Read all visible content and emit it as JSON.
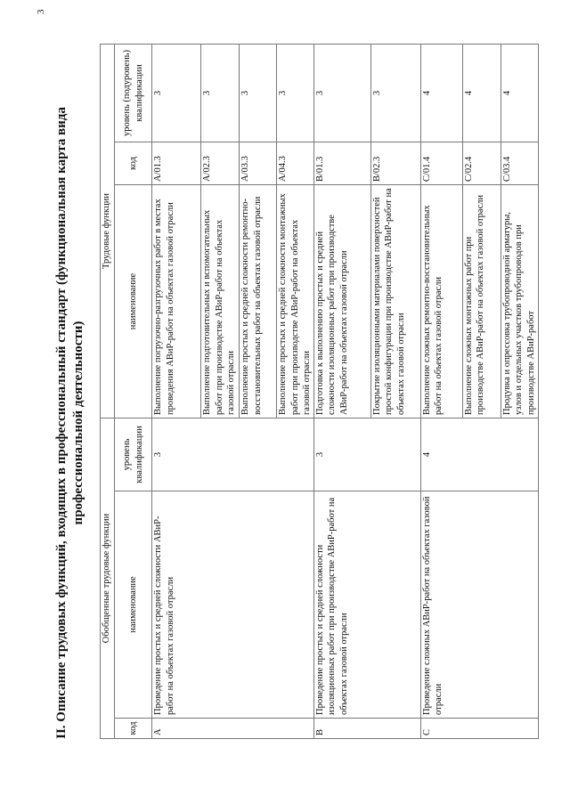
{
  "page_number": "3",
  "title": {
    "line1": "II. Описание трудовых функций, входящих в профессиональный стандарт (функциональная карта вида",
    "line2": "профессиональной деятельности)"
  },
  "table": {
    "headers": {
      "generalized": "Обобщенные трудовые функции",
      "labor": "Трудовые функции",
      "code": "код",
      "name": "наименование",
      "level": "уровень квалификации",
      "sublevel": "уровень (подуровень) квалификации"
    },
    "groups": [
      {
        "code": "A",
        "name": "Проведение простых и средней сложности АВиР-работ на объектах газовой отрасли",
        "level": "3",
        "functions": [
          {
            "name": "Выполнение погрузочно-разгрузочных работ в местах проведения АВиР-работ на объектах газовой отрасли",
            "code": "A/01.3",
            "level": "3"
          },
          {
            "name": "Выполнение подготовительных и вспомогательных работ при производстве АВиР-работ на объектах газовой отрасли",
            "code": "A/02.3",
            "level": "3"
          },
          {
            "name": "Выполнение простых и средней сложности ремонтно-восстановительных работ на объектах газовой отрасли",
            "code": "A/03.3",
            "level": "3"
          },
          {
            "name": "Выполнение простых и средней сложности монтажных работ при производстве АВиР-работ на объектах газовой отрасли",
            "code": "A/04.3",
            "level": "3"
          }
        ]
      },
      {
        "code": "B",
        "name": "Проведение простых и средней сложности изоляционных работ при производстве АВиР-работ на объектах газовой отрасли",
        "level": "3",
        "functions": [
          {
            "name": "Подготовка к выполнению простых и средней сложности изоляционных работ при производстве АВиР-работ на объектах газовой отрасли",
            "code": "B/01.3",
            "level": "3"
          },
          {
            "name": "Покрытие изоляционными материалами поверхностей простой конфигурации при производстве АВиР-работ на объектах газовой отрасли",
            "code": "B/02.3",
            "level": "3"
          }
        ]
      },
      {
        "code": "C",
        "name": "Проведение сложных АВиР-работ на объектах газовой отрасли",
        "level": "4",
        "functions": [
          {
            "name": "Выполнение сложных ремонтно-восстановительных работ на объектах газовой отрасли",
            "code": "C/01.4",
            "level": "4"
          },
          {
            "name": "Выполнение сложных монтажных работ при производстве АВиР-работ на объектах газовой отрасли",
            "code": "C/02.4",
            "level": "4"
          },
          {
            "name": "Продувка и опрессовка трубопроводной арматуры, узлов и отдельных участков трубопроводов при производстве АВиР-работ",
            "code": "C/03.4",
            "level": "4"
          }
        ]
      }
    ]
  }
}
